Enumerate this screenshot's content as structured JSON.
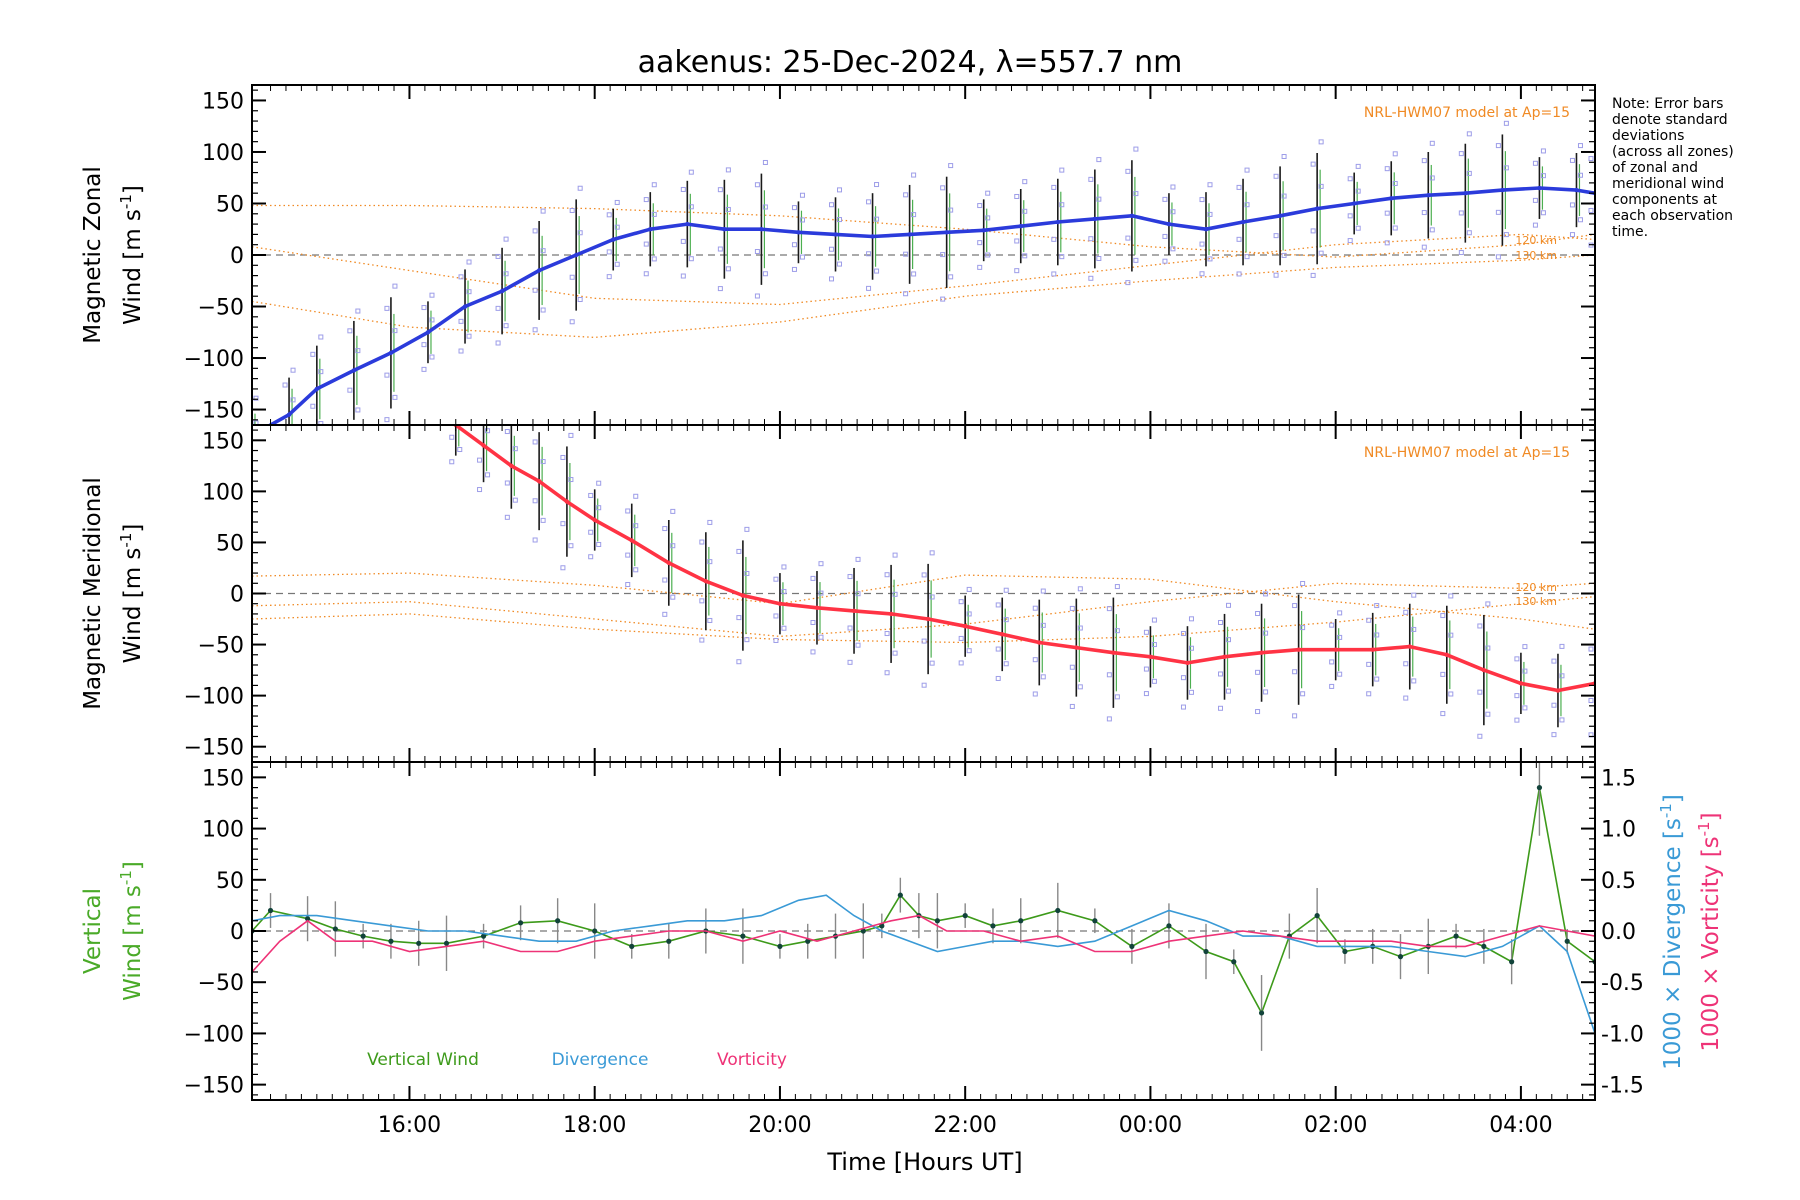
{
  "chart_data": {
    "title": "aakenus: 25-Dec-2024, λ=557.7 nm",
    "xlabel": "Time [Hours UT]",
    "x_ticks": [
      "16:00",
      "18:00",
      "20:00",
      "22:00",
      "00:00",
      "02:00",
      "04:00"
    ],
    "x_tick_hours": [
      16,
      18,
      20,
      22,
      24,
      26,
      28
    ],
    "xlim": [
      14.3,
      28.8
    ],
    "note": [
      "Note: Error bars",
      "denote standard",
      "deviations",
      "(across all zones)",
      "of zonal and",
      "meridional wind",
      "components at",
      "each observation",
      "time."
    ],
    "panels": [
      {
        "id": "zonal",
        "type": "line",
        "ylabel_line1": "Magnetic Zonal",
        "ylabel_line2": "Wind [m s",
        "ylabel_sup": "-1",
        "ylabel_end": "]",
        "ylim": [
          -165,
          165
        ],
        "y_ticks": [
          150,
          100,
          50,
          0,
          -50,
          -100,
          -150
        ],
        "model_label": "NRL-HWM07 model at Ap=15",
        "alt_labels": [
          "120 km",
          "130 km"
        ],
        "series": {
          "color": "#2b3bdb",
          "x": [
            14.3,
            14.7,
            15.0,
            15.4,
            15.8,
            16.2,
            16.6,
            17.0,
            17.4,
            17.8,
            18.2,
            18.6,
            19.0,
            19.4,
            19.8,
            20.2,
            20.6,
            21.0,
            21.4,
            21.8,
            22.2,
            22.6,
            23.0,
            23.4,
            23.8,
            24.2,
            24.6,
            25.0,
            25.4,
            25.8,
            26.2,
            26.6,
            27.0,
            27.4,
            27.8,
            28.2,
            28.6,
            28.8
          ],
          "y": [
            -175,
            -155,
            -130,
            -112,
            -95,
            -75,
            -50,
            -35,
            -15,
            0,
            15,
            25,
            30,
            25,
            25,
            22,
            20,
            18,
            20,
            22,
            24,
            28,
            32,
            35,
            38,
            30,
            25,
            32,
            38,
            45,
            50,
            55,
            58,
            60,
            63,
            65,
            63,
            60
          ]
        },
        "model_curves": [
          {
            "x": [
              14.3,
              16,
              18,
              20,
              22,
              24,
              26,
              28,
              28.8
            ],
            "y": [
              48,
              48,
              45,
              38,
              25,
              8,
              -2,
              10,
              20
            ]
          },
          {
            "x": [
              14.3,
              16,
              18,
              20,
              22,
              24,
              26,
              28,
              28.8
            ],
            "y": [
              8,
              -15,
              -42,
              -48,
              -30,
              -10,
              10,
              20,
              15
            ]
          },
          {
            "x": [
              14.3,
              16,
              18,
              20,
              22,
              24,
              26,
              28,
              28.8
            ],
            "y": [
              -45,
              -70,
              -80,
              -65,
              -40,
              -25,
              -12,
              -5,
              0
            ]
          }
        ]
      },
      {
        "id": "meridional",
        "type": "line",
        "ylabel_line1": "Magnetic Meridional",
        "ylabel_line2": "Wind [m s",
        "ylabel_sup": "-1",
        "ylabel_end": "]",
        "ylim": [
          -165,
          165
        ],
        "y_ticks": [
          150,
          100,
          50,
          0,
          -50,
          -100,
          -150
        ],
        "model_label": "NRL-HWM07 model at Ap=15",
        "alt_labels": [
          "120 km",
          "130 km"
        ],
        "series": {
          "color": "#ff3344",
          "x": [
            16.5,
            16.8,
            17.1,
            17.4,
            17.7,
            18.0,
            18.4,
            18.8,
            19.2,
            19.6,
            20.0,
            20.4,
            20.8,
            21.2,
            21.6,
            22.0,
            22.4,
            22.8,
            23.2,
            23.6,
            24.0,
            24.4,
            24.8,
            25.2,
            25.6,
            26.0,
            26.4,
            26.8,
            27.2,
            27.6,
            28.0,
            28.4,
            28.8
          ],
          "y": [
            165,
            145,
            125,
            110,
            90,
            72,
            52,
            30,
            12,
            -2,
            -10,
            -14,
            -17,
            -20,
            -25,
            -32,
            -40,
            -48,
            -53,
            -58,
            -62,
            -68,
            -62,
            -58,
            -55,
            -55,
            -55,
            -52,
            -60,
            -75,
            -88,
            -95,
            -88
          ]
        },
        "model_curves": [
          {
            "x": [
              14.3,
              16,
              18,
              20,
              22,
              24,
              26,
              28,
              28.8
            ],
            "y": [
              17,
              20,
              8,
              -10,
              18,
              14,
              -8,
              -25,
              -35
            ]
          },
          {
            "x": [
              14.3,
              16,
              18,
              20,
              22,
              24,
              26,
              28,
              28.8
            ],
            "y": [
              -12,
              -8,
              -25,
              -42,
              -30,
              -8,
              10,
              5,
              10
            ]
          },
          {
            "x": [
              14.3,
              16,
              18,
              20,
              22,
              24,
              26,
              28,
              28.8
            ],
            "y": [
              -25,
              -20,
              -35,
              -45,
              -48,
              -42,
              -28,
              -10,
              -3
            ]
          }
        ]
      },
      {
        "id": "vertical",
        "type": "line",
        "ylabel_line1": "Vertical",
        "ylabel_line2": "Wind [m s",
        "ylabel_sup": "-1",
        "ylabel_end": "]",
        "ylim": [
          -165,
          165
        ],
        "y_ticks": [
          150,
          100,
          50,
          0,
          -50,
          -100,
          -150
        ],
        "right_ylim": [
          -1.65,
          1.65
        ],
        "right_y_ticks": [
          "1.5",
          "1.0",
          "0.5",
          "0.0",
          "-0.5",
          "-1.0",
          "-1.5"
        ],
        "right_label_div_prefix": "1000 × Divergence [s",
        "right_label_vort_prefix": "1000 × Vorticity [s",
        "right_label_sup": "-1",
        "right_label_end": "]",
        "legend": [
          "Vertical Wind",
          "Divergence",
          "Vorticity"
        ],
        "series": [
          {
            "name": "Vertical Wind",
            "color": "#3d9a1a",
            "x": [
              14.3,
              14.5,
              14.9,
              15.2,
              15.5,
              15.8,
              16.1,
              16.4,
              16.8,
              17.2,
              17.6,
              18.0,
              18.4,
              18.8,
              19.2,
              19.6,
              20.0,
              20.3,
              20.6,
              20.9,
              21.1,
              21.3,
              21.5,
              21.7,
              22.0,
              22.3,
              22.6,
              23.0,
              23.4,
              23.8,
              24.2,
              24.6,
              24.9,
              25.2,
              25.5,
              25.8,
              26.1,
              26.4,
              26.7,
              27.0,
              27.3,
              27.6,
              27.9,
              28.2,
              28.5,
              28.8
            ],
            "y": [
              0,
              20,
              12,
              2,
              -5,
              -10,
              -12,
              -12,
              -5,
              8,
              10,
              0,
              -15,
              -10,
              0,
              -5,
              -15,
              -10,
              -5,
              0,
              5,
              35,
              15,
              10,
              15,
              5,
              10,
              20,
              10,
              -15,
              5,
              -20,
              -30,
              -80,
              -5,
              15,
              -20,
              -15,
              -25,
              -15,
              -5,
              -15,
              -30,
              140,
              -10,
              -30
            ]
          },
          {
            "name": "Divergence",
            "color": "#3a9ad6",
            "x": [
              14.3,
              14.6,
              15.0,
              15.4,
              15.8,
              16.2,
              16.6,
              17.0,
              17.4,
              17.8,
              18.2,
              18.6,
              19.0,
              19.4,
              19.8,
              20.2,
              20.5,
              20.8,
              21.1,
              21.4,
              21.7,
              22.0,
              22.3,
              22.6,
              23.0,
              23.4,
              23.8,
              24.2,
              24.6,
              25.0,
              25.4,
              25.8,
              26.2,
              26.6,
              27.0,
              27.4,
              27.8,
              28.2,
              28.5,
              28.8
            ],
            "y": [
              0.1,
              0.15,
              0.15,
              0.1,
              0.05,
              0.0,
              0.0,
              -0.05,
              -0.1,
              -0.1,
              0.0,
              0.05,
              0.1,
              0.1,
              0.15,
              0.3,
              0.35,
              0.15,
              0.0,
              -0.1,
              -0.2,
              -0.15,
              -0.1,
              -0.1,
              -0.15,
              -0.1,
              0.05,
              0.2,
              0.1,
              -0.05,
              -0.05,
              -0.15,
              -0.15,
              -0.15,
              -0.2,
              -0.25,
              -0.15,
              0.05,
              -0.2,
              -1.0
            ]
          },
          {
            "name": "Vorticity",
            "color": "#ee3377",
            "x": [
              14.3,
              14.6,
              14.9,
              15.2,
              15.6,
              16.0,
              16.4,
              16.8,
              17.2,
              17.6,
              18.0,
              18.4,
              18.8,
              19.2,
              19.6,
              20.0,
              20.4,
              20.8,
              21.2,
              21.5,
              21.8,
              22.2,
              22.6,
              23.0,
              23.4,
              23.8,
              24.2,
              24.6,
              25.0,
              25.4,
              25.8,
              26.2,
              26.6,
              27.0,
              27.4,
              27.8,
              28.2,
              28.5,
              28.8
            ],
            "y": [
              -0.4,
              -0.1,
              0.1,
              -0.1,
              -0.1,
              -0.2,
              -0.15,
              -0.1,
              -0.2,
              -0.2,
              -0.1,
              -0.05,
              0.0,
              0.0,
              -0.1,
              0.0,
              -0.1,
              0.0,
              0.1,
              0.15,
              0.0,
              0.0,
              -0.1,
              -0.05,
              -0.2,
              -0.2,
              -0.1,
              -0.05,
              0.0,
              -0.05,
              -0.1,
              -0.1,
              -0.1,
              -0.15,
              -0.15,
              -0.05,
              0.05,
              0.0,
              -0.05
            ]
          }
        ]
      }
    ]
  }
}
